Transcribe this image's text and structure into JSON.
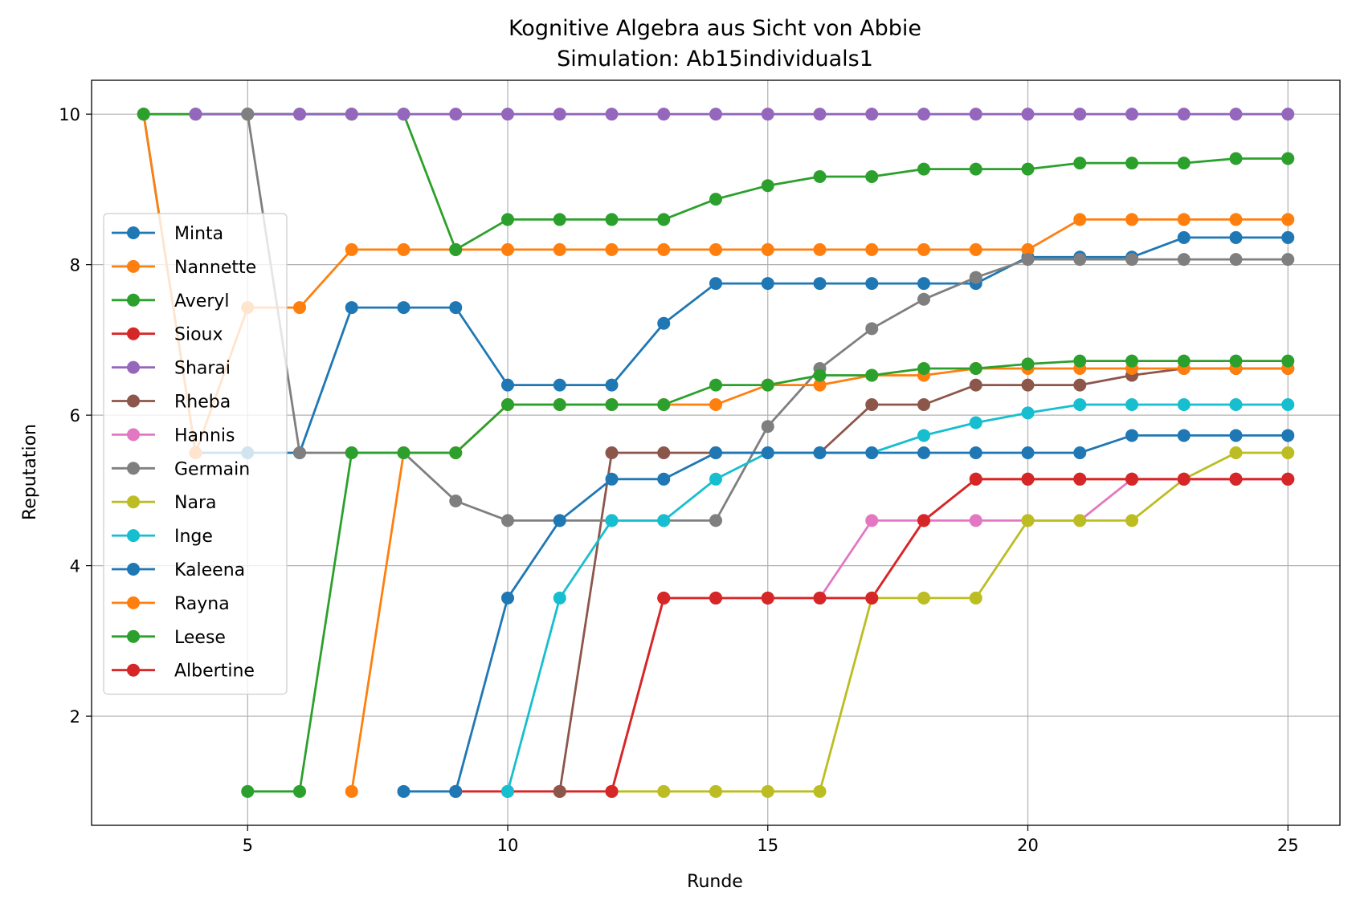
{
  "chart_data": {
    "type": "line",
    "title": "Kognitive Algebra aus Sicht von Abbie",
    "subtitle": "Simulation: Ab15individuals1",
    "xlabel": "Runde",
    "ylabel": "Reputation",
    "xlim": [
      2,
      26
    ],
    "ylim": [
      0.55,
      10.45
    ],
    "xticks": [
      5,
      10,
      15,
      20,
      25
    ],
    "yticks": [
      2,
      4,
      6,
      8,
      10
    ],
    "grid": true,
    "legend_position": "center-left",
    "series": [
      {
        "name": "Minta",
        "color": "#1f77b4",
        "x": [
          3,
          4,
          5,
          6,
          7,
          8,
          9,
          10,
          11,
          12,
          13,
          14,
          15,
          16,
          17,
          18,
          19,
          20,
          21,
          22,
          23,
          24,
          25
        ],
        "values": [
          10,
          5.5,
          5.5,
          5.5,
          7.43,
          7.43,
          7.43,
          6.4,
          6.4,
          6.4,
          7.22,
          7.75,
          7.75,
          7.75,
          7.75,
          7.75,
          7.75,
          8.1,
          8.1,
          8.1,
          8.36,
          8.36,
          8.36
        ]
      },
      {
        "name": "Nannette",
        "color": "#ff7f0e",
        "x": [
          3,
          4,
          5,
          6,
          7,
          8,
          9,
          10,
          11,
          12,
          13,
          14,
          15,
          16,
          17,
          18,
          19,
          20,
          21,
          22,
          23,
          24,
          25
        ],
        "values": [
          10,
          5.5,
          7.43,
          7.43,
          8.2,
          8.2,
          8.2,
          8.2,
          8.2,
          8.2,
          8.2,
          8.2,
          8.2,
          8.2,
          8.2,
          8.2,
          8.2,
          8.2,
          8.6,
          8.6,
          8.6,
          8.6,
          8.6
        ]
      },
      {
        "name": "Averyl",
        "color": "#2ca02c",
        "x": [
          3,
          4,
          5,
          6,
          7,
          8,
          9,
          10,
          11,
          12,
          13,
          14,
          15,
          16,
          17,
          18,
          19,
          20,
          21,
          22,
          23,
          24,
          25
        ],
        "values": [
          10,
          10,
          10,
          10,
          10,
          10,
          8.2,
          8.6,
          8.6,
          8.6,
          8.6,
          8.87,
          9.05,
          9.17,
          9.17,
          9.27,
          9.27,
          9.27,
          9.35,
          9.35,
          9.35,
          9.41,
          9.41
        ]
      },
      {
        "name": "Sioux",
        "color": "#d62728",
        "x": [
          9,
          10,
          11,
          12,
          13,
          14,
          15,
          16,
          17,
          18,
          19,
          20,
          21,
          22,
          23,
          24,
          25
        ],
        "values": [
          1,
          1,
          1,
          1,
          3.57,
          3.57,
          3.57,
          3.57,
          3.57,
          4.6,
          5.15,
          5.15,
          5.15,
          5.15,
          5.15,
          5.15,
          5.15
        ]
      },
      {
        "name": "Sharai",
        "color": "#9467bd",
        "x": [
          4,
          5,
          6,
          7,
          8,
          9,
          10,
          11,
          12,
          13,
          14,
          15,
          16,
          17,
          18,
          19,
          20,
          21,
          22,
          23,
          24,
          25
        ],
        "values": [
          10,
          10,
          10,
          10,
          10,
          10,
          10,
          10,
          10,
          10,
          10,
          10,
          10,
          10,
          10,
          10,
          10,
          10,
          10,
          10,
          10,
          10
        ]
      },
      {
        "name": "Rheba",
        "color": "#8c564b",
        "x": [
          11,
          12,
          13,
          14,
          15,
          16,
          17,
          18,
          19,
          20,
          21,
          22,
          23,
          24,
          25
        ],
        "values": [
          1,
          5.5,
          5.5,
          5.5,
          5.5,
          5.5,
          6.14,
          6.14,
          6.4,
          6.4,
          6.4,
          6.53,
          6.62,
          6.62,
          6.62
        ]
      },
      {
        "name": "Hannis",
        "color": "#e377c2",
        "x": [
          16,
          17,
          18,
          19,
          20,
          21,
          22,
          23,
          24,
          25
        ],
        "values": [
          3.57,
          4.6,
          4.6,
          4.6,
          4.6,
          4.6,
          5.15,
          5.15,
          5.15,
          5.15
        ]
      },
      {
        "name": "Germain",
        "color": "#7f7f7f",
        "x": [
          5,
          6,
          7,
          8,
          9,
          10,
          11,
          12,
          13,
          14,
          15,
          16,
          17,
          18,
          19,
          20,
          21,
          22,
          23,
          24,
          25
        ],
        "values": [
          10,
          5.5,
          5.5,
          5.5,
          4.86,
          4.6,
          4.6,
          4.6,
          4.6,
          4.6,
          5.85,
          6.62,
          7.15,
          7.54,
          7.83,
          8.07,
          8.07,
          8.07,
          8.07,
          8.07,
          8.07
        ]
      },
      {
        "name": "Nara",
        "color": "#bcbd22",
        "x": [
          12,
          13,
          14,
          15,
          16,
          17,
          18,
          19,
          20,
          21,
          22,
          23,
          24,
          25
        ],
        "values": [
          1,
          1,
          1,
          1,
          1,
          3.57,
          3.57,
          3.57,
          4.6,
          4.6,
          4.6,
          5.15,
          5.5,
          5.5
        ]
      },
      {
        "name": "Inge",
        "color": "#17becf",
        "x": [
          10,
          11,
          12,
          13,
          14,
          15,
          16,
          17,
          18,
          19,
          20,
          21,
          22,
          23,
          24,
          25
        ],
        "values": [
          1,
          3.57,
          4.6,
          4.6,
          5.15,
          5.5,
          5.5,
          5.5,
          5.73,
          5.9,
          6.03,
          6.14,
          6.14,
          6.14,
          6.14,
          6.14
        ]
      },
      {
        "name": "Kaleena",
        "color": "#1f77b4",
        "x": [
          8,
          9,
          10,
          11,
          12,
          13,
          14,
          15,
          16,
          17,
          18,
          19,
          20,
          21,
          22,
          23,
          24,
          25
        ],
        "values": [
          1,
          1,
          3.57,
          4.6,
          5.15,
          5.15,
          5.5,
          5.5,
          5.5,
          5.5,
          5.5,
          5.5,
          5.5,
          5.5,
          5.73,
          5.73,
          5.73,
          5.73
        ]
      },
      {
        "name": "Rayna",
        "color": "#ff7f0e",
        "x": [
          7,
          8,
          9,
          10,
          11,
          12,
          13,
          14,
          15,
          16,
          17,
          18,
          19,
          20,
          21,
          22,
          23,
          24,
          25
        ],
        "values": [
          1,
          5.5,
          5.5,
          6.14,
          6.14,
          6.14,
          6.14,
          6.14,
          6.4,
          6.4,
          6.53,
          6.53,
          6.62,
          6.62,
          6.62,
          6.62,
          6.62,
          6.62,
          6.62
        ]
      },
      {
        "name": "Leese",
        "color": "#2ca02c",
        "x": [
          5,
          6,
          7,
          8,
          9,
          10,
          11,
          12,
          13,
          14,
          15,
          16,
          17,
          18,
          19,
          20,
          21,
          22,
          23,
          24,
          25
        ],
        "values": [
          1,
          1,
          5.5,
          5.5,
          5.5,
          6.14,
          6.14,
          6.14,
          6.14,
          6.4,
          6.4,
          6.53,
          6.53,
          6.62,
          6.62,
          6.68,
          6.72,
          6.72,
          6.72,
          6.72,
          6.72
        ]
      },
      {
        "name": "Albertine",
        "color": "#d62728",
        "x": [
          12,
          13,
          14,
          15,
          16,
          17,
          18,
          19,
          20,
          21,
          22,
          23,
          24,
          25
        ],
        "values": [
          1,
          3.57,
          3.57,
          3.57,
          3.57,
          3.57,
          4.6,
          5.15,
          5.15,
          5.15,
          5.15,
          5.15,
          5.15,
          5.15
        ]
      }
    ]
  }
}
